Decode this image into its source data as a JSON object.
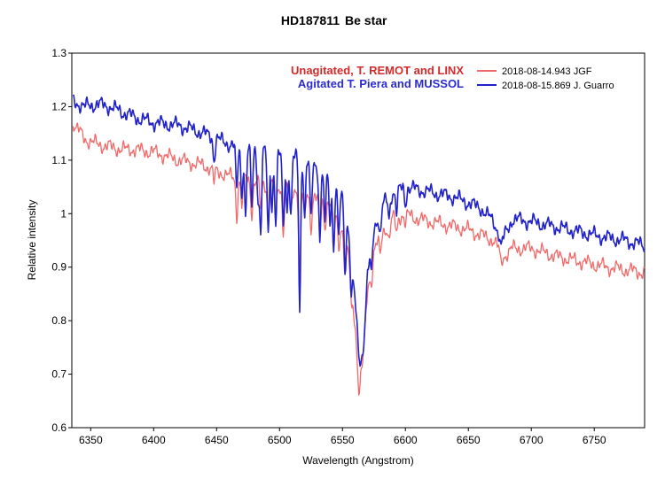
{
  "chart_data": {
    "type": "line",
    "title": "HD187811",
    "subtitle": "Be star",
    "xlabel": "Wavelength (Angstrom)",
    "ylabel": "Relative intensity",
    "xlim": [
      6335,
      6790
    ],
    "ylim": [
      0.6,
      1.3
    ],
    "x_ticks": [
      6350,
      6400,
      6450,
      6500,
      6550,
      6600,
      6650,
      6700,
      6750
    ],
    "y_ticks": [
      0.6,
      0.7,
      0.8,
      0.9,
      1,
      1.1,
      1.2,
      1.3
    ],
    "y_tick_labels": [
      "0.6",
      "0.7",
      "0.8",
      "0.9",
      "1",
      "1.1",
      "1.2",
      "1.3"
    ],
    "grid": false,
    "legend_position": "top-right",
    "annotations": [
      {
        "text": "Unagitated, T. REMOT and LINX",
        "color": "#d42a2a"
      },
      {
        "text": "Agitated T. Piera and MUSSOL",
        "color": "#2b2bd0"
      }
    ],
    "series": [
      {
        "name": "2018-08-14.943  JGF",
        "color": "#f06a6a",
        "x": [
          6336,
          6345,
          6355,
          6365,
          6375,
          6385,
          6400,
          6420,
          6440,
          6460,
          6470,
          6480,
          6490,
          6500,
          6510,
          6515,
          6520,
          6530,
          6540,
          6545,
          6550,
          6555,
          6558,
          6561,
          6563,
          6564,
          6566,
          6568,
          6570,
          6575,
          6580,
          6590,
          6600,
          6610,
          6620,
          6630,
          6640,
          6650,
          6660,
          6670,
          6675,
          6678,
          6685,
          6700,
          6720,
          6740,
          6760,
          6775,
          6790
        ],
        "y": [
          1.17,
          1.14,
          1.13,
          1.125,
          1.12,
          1.12,
          1.115,
          1.1,
          1.09,
          1.07,
          1.065,
          1.06,
          1.055,
          1.05,
          1.045,
          1.045,
          1.04,
          1.03,
          1.02,
          1.0,
          0.97,
          0.92,
          0.85,
          0.76,
          0.7,
          0.69,
          0.72,
          0.78,
          0.86,
          0.93,
          0.96,
          0.99,
          1.0,
          0.99,
          0.985,
          0.98,
          0.975,
          0.97,
          0.96,
          0.95,
          0.93,
          0.92,
          0.935,
          0.935,
          0.92,
          0.91,
          0.9,
          0.895,
          0.89
        ]
      },
      {
        "name": "2018-08-15.869  J. Guarro",
        "color": "#2222cc",
        "x": [
          6336,
          6345,
          6355,
          6365,
          6375,
          6385,
          6400,
          6420,
          6440,
          6460,
          6470,
          6480,
          6490,
          6500,
          6510,
          6515,
          6520,
          6530,
          6540,
          6545,
          6550,
          6555,
          6558,
          6561,
          6563,
          6564,
          6566,
          6568,
          6570,
          6575,
          6580,
          6590,
          6600,
          6610,
          6620,
          6630,
          6640,
          6650,
          6660,
          6670,
          6675,
          6678,
          6685,
          6700,
          6720,
          6740,
          6760,
          6775,
          6790
        ],
        "y": [
          1.21,
          1.2,
          1.205,
          1.2,
          1.19,
          1.18,
          1.17,
          1.165,
          1.15,
          1.13,
          1.125,
          1.12,
          1.115,
          1.11,
          1.105,
          1.105,
          1.1,
          1.09,
          1.08,
          1.06,
          1.03,
          0.97,
          0.9,
          0.8,
          0.74,
          0.72,
          0.74,
          0.8,
          0.89,
          0.97,
          1.01,
          1.04,
          1.05,
          1.045,
          1.04,
          1.035,
          1.03,
          1.02,
          1.01,
          0.985,
          0.96,
          0.955,
          0.99,
          0.985,
          0.975,
          0.965,
          0.955,
          0.95,
          0.94
        ]
      }
    ],
    "absorption_lines": {
      "red_x": [
        6448,
        6466,
        6470,
        6478,
        6485,
        6491,
        6497,
        6503,
        6509,
        6516,
        6520,
        6525,
        6532,
        6536,
        6543,
        6547,
        6552,
        6557,
        6563,
        6573,
        6580,
        6587,
        6593,
        6600,
        6676
      ],
      "red_depth": [
        0.025,
        0.07,
        0.05,
        0.06,
        0.05,
        0.07,
        0.06,
        0.08,
        0.05,
        0.16,
        0.05,
        0.06,
        0.07,
        0.05,
        0.08,
        0.05,
        0.06,
        0.05,
        0.03,
        0.03,
        0.04,
        0.03,
        0.03,
        0.02,
        0.02
      ],
      "blue_x": [
        6448,
        6466,
        6470,
        6473,
        6478,
        6483,
        6485,
        6491,
        6494,
        6497,
        6503,
        6506,
        6509,
        6516,
        6520,
        6525,
        6532,
        6536,
        6540,
        6543,
        6547,
        6552,
        6557,
        6573,
        6580,
        6587,
        6593,
        6600,
        6676
      ],
      "blue_depth": [
        0.04,
        0.09,
        0.09,
        0.13,
        0.11,
        0.09,
        0.15,
        0.16,
        0.1,
        0.13,
        0.14,
        0.1,
        0.11,
        0.28,
        0.1,
        0.11,
        0.14,
        0.11,
        0.1,
        0.14,
        0.1,
        0.11,
        0.08,
        0.05,
        0.05,
        0.04,
        0.04,
        0.03,
        0.02
      ]
    }
  }
}
